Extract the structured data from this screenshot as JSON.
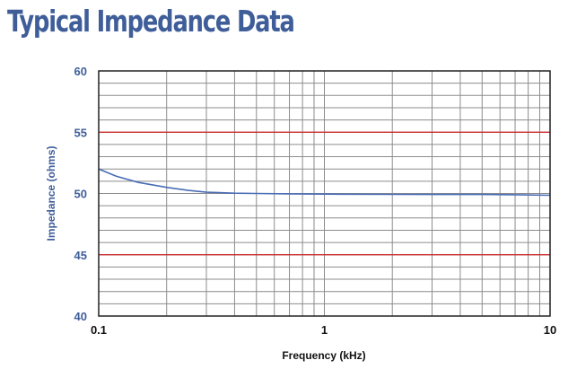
{
  "page": {
    "title": "Typical Impedance Data"
  },
  "colors": {
    "title": "#3f5e99",
    "curve": "#4a6db5",
    "grid": "#8c8c8c",
    "limit": "#cc2222",
    "axis": "#222222",
    "ytick": "#3f5e99"
  },
  "chart_data": {
    "type": "line",
    "title": "Typical Impedance Data",
    "xlabel": "Frequency (kHz)",
    "ylabel": "Impedance (ohms)",
    "xscale": "log",
    "xlim": [
      0.1,
      10
    ],
    "ylim": [
      40,
      60
    ],
    "x_tick_labels": [
      "0.1",
      "1",
      "10"
    ],
    "y_tick_labels": [
      "40",
      "45",
      "50",
      "55",
      "60"
    ],
    "grid": true,
    "y_minor_step": 1,
    "reference_lines": [
      {
        "y": 55,
        "color": "#cc2222"
      },
      {
        "y": 45,
        "color": "#cc2222"
      }
    ],
    "series": [
      {
        "name": "Impedance",
        "x": [
          0.1,
          0.12,
          0.15,
          0.2,
          0.25,
          0.3,
          0.4,
          0.5,
          0.7,
          1,
          2,
          3,
          5,
          7,
          10
        ],
        "values": [
          52.0,
          51.4,
          50.9,
          50.5,
          50.25,
          50.1,
          50.02,
          50.0,
          49.97,
          49.95,
          49.93,
          49.92,
          49.92,
          49.9,
          49.85
        ]
      }
    ]
  }
}
